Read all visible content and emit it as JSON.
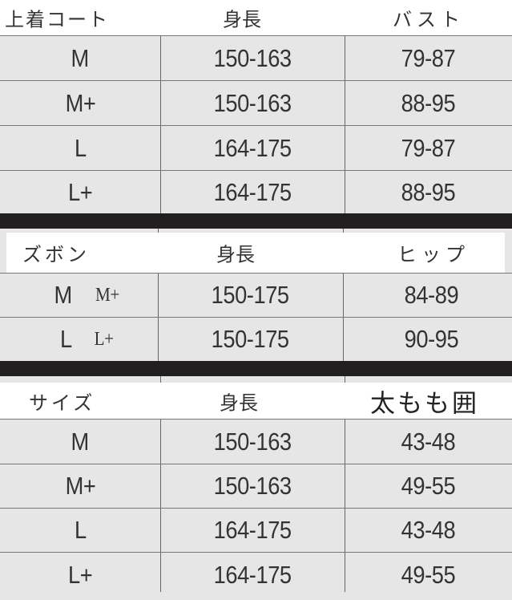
{
  "tables": [
    {
      "headers": [
        "上着コート",
        "身長",
        "バスト"
      ],
      "rows": [
        [
          "M",
          "150-163",
          "79-87"
        ],
        [
          "M+",
          "150-163",
          "88-95"
        ],
        [
          "L",
          "164-175",
          "79-87"
        ],
        [
          "L+",
          "164-175",
          "88-95"
        ]
      ]
    },
    {
      "headers": [
        "ズボン",
        "身長",
        "ヒップ"
      ],
      "rows": [
        {
          "size": "M",
          "alt": "M+",
          "height": "150-175",
          "value": "84-89"
        },
        {
          "size": "L",
          "alt": "L+",
          "height": "150-175",
          "value": "90-95"
        }
      ]
    },
    {
      "headers": [
        "サイズ",
        "身長",
        "太もも囲"
      ],
      "rows": [
        [
          "M",
          "150-163",
          "43-48"
        ],
        [
          "M+",
          "150-163",
          "49-55"
        ],
        [
          "L",
          "164-175",
          "43-48"
        ],
        [
          "L+",
          "164-175",
          "49-55"
        ]
      ]
    }
  ]
}
